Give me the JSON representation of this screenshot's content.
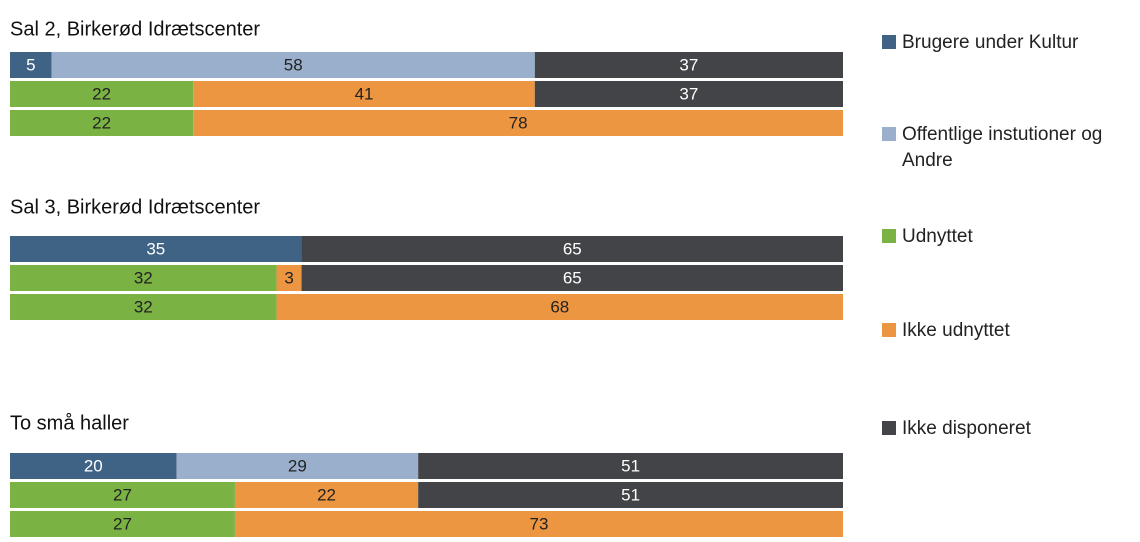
{
  "legend": [
    {
      "name": "Brugere under Kultur",
      "color": "#3f6384"
    },
    {
      "name": "Offentlige instutioner og Andre",
      "color": "#9aafcc"
    },
    {
      "name": "Udnyttet",
      "color": "#7ab243"
    },
    {
      "name": "Ikke udnyttet",
      "color": "#ed9642"
    },
    {
      "name": "Ikke disponeret",
      "color": "#434447"
    }
  ],
  "chart_data": [
    {
      "type": "stacked-bar-horizontal",
      "title": "Sal 2, Birkerød Idrætscenter",
      "xlim": [
        0,
        100
      ],
      "series": [
        {
          "values": [
            5,
            null,
            null
          ]
        },
        {
          "values": [
            58,
            null,
            null
          ]
        },
        {
          "values": [
            null,
            22,
            22
          ]
        },
        {
          "values": [
            null,
            41,
            78
          ]
        },
        {
          "values": [
            37,
            37,
            null
          ]
        }
      ]
    },
    {
      "type": "stacked-bar-horizontal",
      "title": "Sal 3, Birkerød Idrætscenter",
      "xlim": [
        0,
        100
      ],
      "series": [
        {
          "values": [
            35,
            null,
            null
          ]
        },
        {
          "values": [
            null,
            null,
            null
          ]
        },
        {
          "values": [
            null,
            32,
            32
          ]
        },
        {
          "values": [
            null,
            3,
            68
          ]
        },
        {
          "values": [
            65,
            65,
            null
          ]
        }
      ]
    },
    {
      "type": "stacked-bar-horizontal",
      "title": "To små haller",
      "xlim": [
        0,
        100
      ],
      "series": [
        {
          "values": [
            20,
            null,
            null
          ]
        },
        {
          "values": [
            29,
            null,
            null
          ]
        },
        {
          "values": [
            null,
            27,
            27
          ]
        },
        {
          "values": [
            null,
            22,
            73
          ]
        },
        {
          "values": [
            51,
            51,
            null
          ]
        }
      ]
    }
  ]
}
